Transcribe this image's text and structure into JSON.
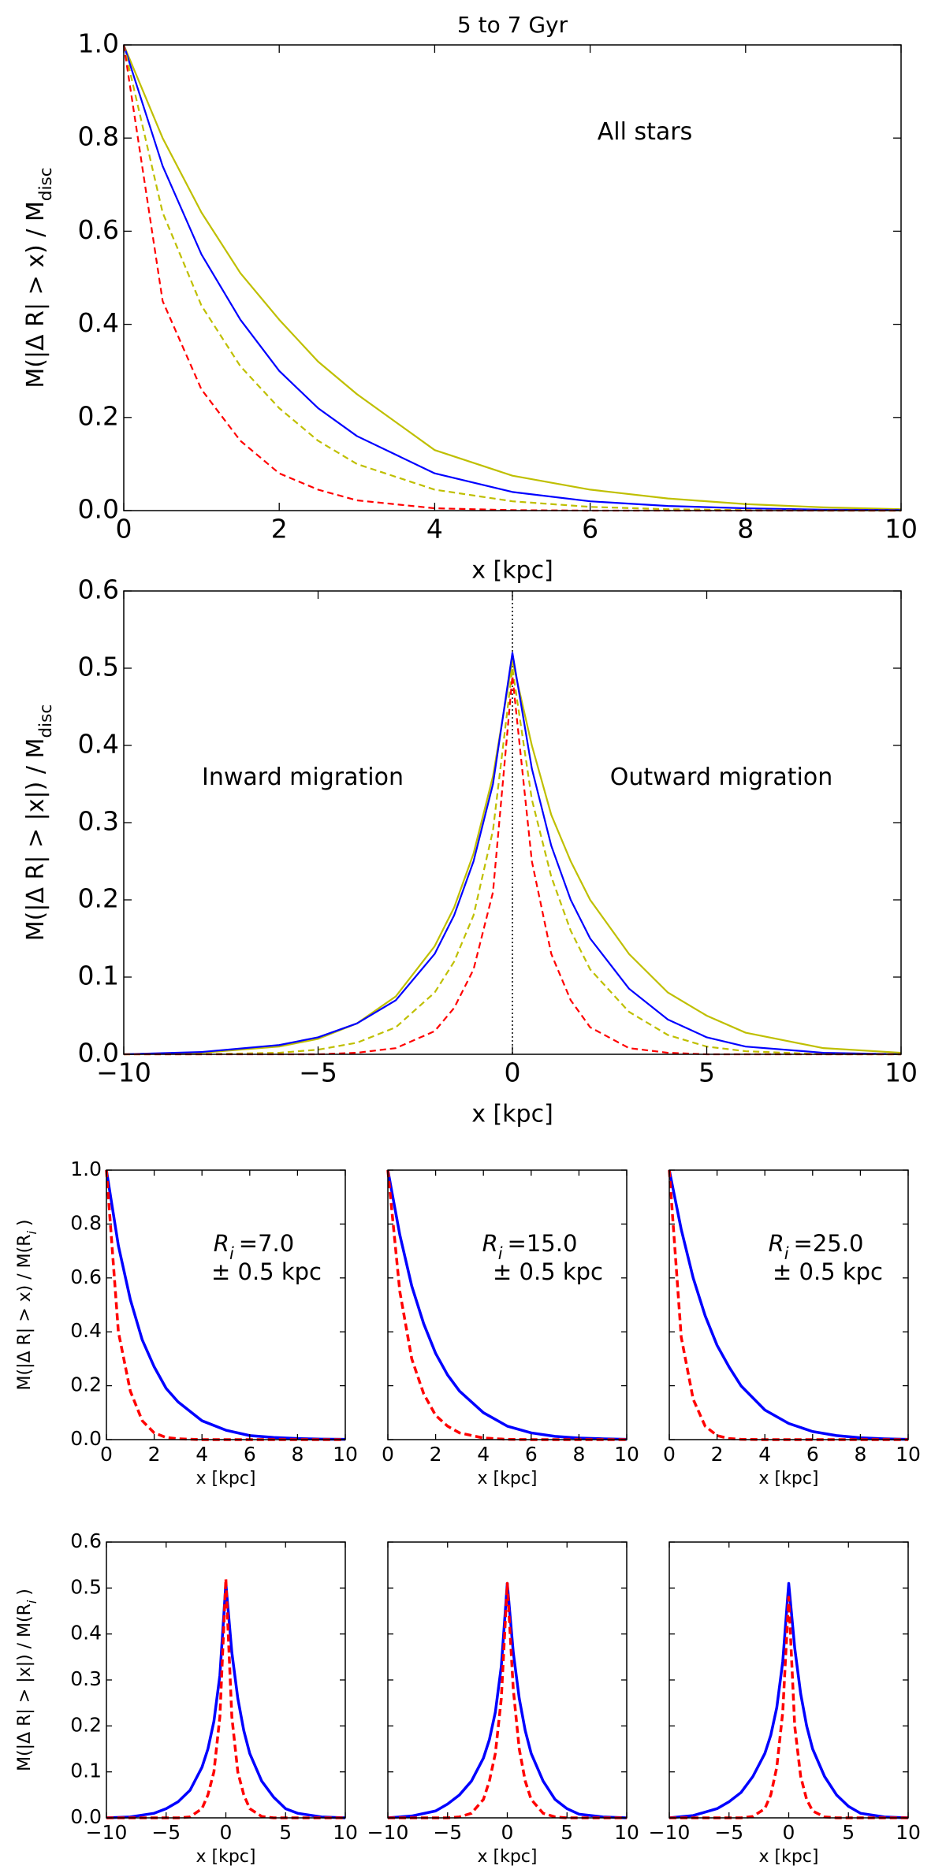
{
  "chart_data": [
    {
      "type": "line",
      "title": "5 to 7 Gyr",
      "xlabel": "x [kpc]",
      "ylabel": [
        "M(|Δ R| > x) / M",
        "disc"
      ],
      "annotations": [
        [
          "All stars"
        ]
      ],
      "x": [
        0,
        0.5,
        1,
        1.5,
        2,
        2.5,
        3,
        4,
        5,
        6,
        7,
        8,
        9,
        10
      ],
      "series": [
        {
          "color": "#bfbf00",
          "linestyle": "solid",
          "values": [
            1,
            0.8,
            0.64,
            0.51,
            0.41,
            0.32,
            0.25,
            0.13,
            0.075,
            0.045,
            0.026,
            0.014,
            0.007,
            0.003
          ]
        },
        {
          "color": "#0000ff",
          "linestyle": "solid",
          "values": [
            1,
            0.74,
            0.55,
            0.41,
            0.3,
            0.22,
            0.16,
            0.08,
            0.04,
            0.02,
            0.01,
            0.005,
            0.002,
            0.001
          ]
        },
        {
          "color": "#bfbf00",
          "linestyle": "dashed",
          "values": [
            1,
            0.64,
            0.44,
            0.31,
            0.22,
            0.15,
            0.1,
            0.045,
            0.02,
            0.008,
            0.003,
            0.001,
            0,
            0
          ]
        },
        {
          "color": "#ff0000",
          "linestyle": "dashed",
          "values": [
            1,
            0.45,
            0.26,
            0.15,
            0.08,
            0.045,
            0.022,
            0.005,
            0.001,
            0,
            0,
            0,
            0,
            0
          ]
        }
      ],
      "xlim": [
        0,
        10
      ],
      "ylim": [
        0,
        1
      ],
      "xticks": [
        0,
        2,
        4,
        6,
        8,
        10
      ],
      "yticks": [
        {
          "value": 0,
          "label": "0.0"
        },
        0.2,
        0.4,
        0.6,
        0.8,
        {
          "value": 1,
          "label": "1.0"
        }
      ]
    },
    {
      "type": "line",
      "xlabel": "x [kpc]",
      "ylabel": [
        "M(|Δ R| > |x|) / M",
        "disc"
      ],
      "annotations": [
        [
          "Inward migration"
        ],
        [
          "Outward migration"
        ]
      ],
      "vline": 0,
      "x": [
        -10,
        -8,
        -6,
        -5,
        -4,
        -3,
        -2,
        -1.5,
        -1,
        -0.5,
        0,
        0.5,
        1,
        1.5,
        2,
        3,
        4,
        5,
        6,
        8,
        10
      ],
      "series": [
        {
          "color": "#bfbf00",
          "linestyle": "solid",
          "values": [
            0,
            0.002,
            0.01,
            0.02,
            0.04,
            0.075,
            0.14,
            0.19,
            0.26,
            0.36,
            0.51,
            0.4,
            0.31,
            0.25,
            0.2,
            0.13,
            0.08,
            0.05,
            0.028,
            0.008,
            0.002
          ]
        },
        {
          "color": "#0000ff",
          "linestyle": "solid",
          "values": [
            0,
            0.003,
            0.012,
            0.022,
            0.04,
            0.07,
            0.13,
            0.18,
            0.25,
            0.35,
            0.52,
            0.37,
            0.27,
            0.2,
            0.15,
            0.085,
            0.045,
            0.022,
            0.01,
            0.002,
            0
          ]
        },
        {
          "color": "#bfbf00",
          "linestyle": "dashed",
          "values": [
            0,
            0,
            0.002,
            0.006,
            0.015,
            0.035,
            0.08,
            0.12,
            0.18,
            0.29,
            0.5,
            0.33,
            0.23,
            0.16,
            0.11,
            0.055,
            0.025,
            0.01,
            0.004,
            0,
            0
          ]
        },
        {
          "color": "#ff0000",
          "linestyle": "dashed",
          "values": [
            0,
            0,
            0,
            0,
            0.002,
            0.008,
            0.03,
            0.06,
            0.11,
            0.21,
            0.49,
            0.25,
            0.13,
            0.07,
            0.035,
            0.008,
            0.002,
            0,
            0,
            0,
            0
          ]
        }
      ],
      "xlim": [
        -10,
        10
      ],
      "ylim": [
        0,
        0.6
      ],
      "xticks": [
        {
          "value": -10,
          "label": "−10"
        },
        {
          "value": -5,
          "label": "−5"
        },
        0,
        5,
        10
      ],
      "yticks": [
        {
          "value": 0,
          "label": "0.0"
        },
        0.1,
        0.2,
        0.3,
        0.4,
        0.5,
        0.6
      ]
    },
    {
      "type": "line",
      "xlabel": "x [kpc]",
      "ylabel": [
        "M(|Δ R| > x) / M(R",
        "i",
        ")"
      ],
      "annotations": [
        [
          "R",
          "i",
          "=7.0"
        ],
        [
          "± 0.5 kpc"
        ]
      ],
      "x": [
        0,
        0.5,
        1,
        1.5,
        2,
        2.5,
        3,
        4,
        5,
        6,
        7,
        8,
        9,
        10
      ],
      "series": [
        {
          "color": "#0000ff",
          "linestyle": "solid",
          "values": [
            1,
            0.72,
            0.52,
            0.37,
            0.27,
            0.19,
            0.14,
            0.07,
            0.035,
            0.015,
            0.008,
            0.004,
            0.002,
            0.001
          ]
        },
        {
          "color": "#ff0000",
          "linestyle": "dashed",
          "values": [
            1,
            0.4,
            0.18,
            0.07,
            0.025,
            0.008,
            0.003,
            0,
            0,
            0,
            0,
            0,
            0,
            0
          ]
        }
      ],
      "xlim": [
        0,
        10
      ],
      "ylim": [
        0,
        1
      ],
      "xticks": [
        0,
        2,
        4,
        6,
        8,
        10
      ],
      "yticks": [
        {
          "value": 0,
          "label": "0.0"
        },
        0.2,
        0.4,
        0.6,
        0.8,
        {
          "value": 1,
          "label": "1.0"
        }
      ]
    },
    {
      "type": "line",
      "xlabel": "x [kpc]",
      "annotations": [
        [
          "R",
          "i",
          "=15.0"
        ],
        [
          "± 0.5 kpc"
        ]
      ],
      "x": [
        0,
        0.5,
        1,
        1.5,
        2,
        2.5,
        3,
        4,
        5,
        6,
        7,
        8,
        9,
        10
      ],
      "series": [
        {
          "color": "#0000ff",
          "linestyle": "solid",
          "values": [
            1,
            0.76,
            0.57,
            0.43,
            0.32,
            0.24,
            0.18,
            0.1,
            0.05,
            0.025,
            0.012,
            0.006,
            0.003,
            0.001
          ]
        },
        {
          "color": "#ff0000",
          "linestyle": "dashed",
          "values": [
            1,
            0.55,
            0.3,
            0.17,
            0.09,
            0.05,
            0.025,
            0.006,
            0.001,
            0,
            0,
            0,
            0,
            0
          ]
        }
      ],
      "xlim": [
        0,
        10
      ],
      "ylim": [
        0,
        1
      ],
      "xticks": [
        0,
        2,
        4,
        6,
        8,
        10
      ],
      "yticks": [
        0,
        0.2,
        0.4,
        0.6,
        0.8,
        1
      ],
      "ytick_labels": false
    },
    {
      "type": "line",
      "xlabel": "x [kpc]",
      "annotations": [
        [
          "R",
          "i",
          "=25.0"
        ],
        [
          "± 0.5 kpc"
        ]
      ],
      "x": [
        0,
        0.5,
        1,
        1.5,
        2,
        2.5,
        3,
        4,
        5,
        6,
        7,
        8,
        9,
        10
      ],
      "series": [
        {
          "color": "#0000ff",
          "linestyle": "solid",
          "values": [
            1,
            0.78,
            0.6,
            0.46,
            0.35,
            0.27,
            0.2,
            0.11,
            0.06,
            0.03,
            0.015,
            0.007,
            0.003,
            0.001
          ]
        },
        {
          "color": "#ff0000",
          "linestyle": "dashed",
          "values": [
            1,
            0.38,
            0.15,
            0.05,
            0.015,
            0.004,
            0.001,
            0,
            0,
            0,
            0,
            0,
            0,
            0
          ]
        }
      ],
      "xlim": [
        0,
        10
      ],
      "ylim": [
        0,
        1
      ],
      "xticks": [
        0,
        2,
        4,
        6,
        8,
        10
      ],
      "yticks": [
        0,
        0.2,
        0.4,
        0.6,
        0.8,
        1
      ],
      "ytick_labels": false
    },
    {
      "type": "line",
      "xlabel": "x [kpc]",
      "ylabel": [
        "M(|Δ R| > |x|) / M(R",
        "i",
        ")"
      ],
      "x": [
        -10,
        -8,
        -6,
        -5,
        -4,
        -3,
        -2,
        -1.5,
        -1,
        -0.5,
        0,
        0.5,
        1,
        1.5,
        2,
        3,
        4,
        5,
        6,
        8,
        10
      ],
      "series": [
        {
          "color": "#0000ff",
          "linestyle": "solid",
          "values": [
            0,
            0.002,
            0.01,
            0.02,
            0.035,
            0.06,
            0.11,
            0.15,
            0.21,
            0.31,
            0.51,
            0.36,
            0.26,
            0.19,
            0.14,
            0.08,
            0.045,
            0.02,
            0.01,
            0.002,
            0
          ]
        },
        {
          "color": "#ff0000",
          "linestyle": "dashed",
          "values": [
            0,
            0,
            0,
            0,
            0,
            0.002,
            0.02,
            0.05,
            0.1,
            0.22,
            0.52,
            0.22,
            0.1,
            0.05,
            0.02,
            0.003,
            0,
            0,
            0,
            0,
            0
          ]
        }
      ],
      "xlim": [
        -10,
        10
      ],
      "ylim": [
        0,
        0.6
      ],
      "xticks": [
        {
          "value": -10,
          "label": "−10"
        },
        {
          "value": -5,
          "label": "−5"
        },
        0,
        5,
        10
      ],
      "yticks": [
        {
          "value": 0,
          "label": "0.0"
        },
        0.1,
        0.2,
        0.3,
        0.4,
        0.5,
        0.6
      ]
    },
    {
      "type": "line",
      "xlabel": "x [kpc]",
      "x": [
        -10,
        -8,
        -6,
        -5,
        -4,
        -3,
        -2,
        -1.5,
        -1,
        -0.5,
        0,
        0.5,
        1,
        1.5,
        2,
        3,
        4,
        5,
        6,
        8,
        10
      ],
      "series": [
        {
          "color": "#0000ff",
          "linestyle": "solid",
          "values": [
            0,
            0.004,
            0.015,
            0.03,
            0.05,
            0.08,
            0.13,
            0.17,
            0.23,
            0.33,
            0.51,
            0.36,
            0.26,
            0.19,
            0.14,
            0.08,
            0.04,
            0.02,
            0.008,
            0.002,
            0
          ]
        },
        {
          "color": "#ff0000",
          "linestyle": "dashed",
          "values": [
            0,
            0,
            0,
            0,
            0.002,
            0.01,
            0.04,
            0.08,
            0.14,
            0.26,
            0.51,
            0.28,
            0.15,
            0.08,
            0.04,
            0.01,
            0.002,
            0,
            0,
            0,
            0
          ]
        }
      ],
      "xlim": [
        -10,
        10
      ],
      "ylim": [
        0,
        0.6
      ],
      "xticks": [
        {
          "value": -10,
          "label": "−10"
        },
        {
          "value": -5,
          "label": "−5"
        },
        0,
        5,
        10
      ],
      "yticks": [
        0,
        0.1,
        0.2,
        0.3,
        0.4,
        0.5,
        0.6
      ],
      "ytick_labels": false
    },
    {
      "type": "line",
      "xlabel": "x [kpc]",
      "x": [
        -10,
        -8,
        -6,
        -5,
        -4,
        -3,
        -2,
        -1.5,
        -1,
        -0.5,
        0,
        0.5,
        1,
        1.5,
        2,
        3,
        4,
        5,
        6,
        8,
        10
      ],
      "series": [
        {
          "color": "#0000ff",
          "linestyle": "solid",
          "values": [
            0,
            0.005,
            0.02,
            0.035,
            0.055,
            0.09,
            0.14,
            0.18,
            0.24,
            0.34,
            0.51,
            0.37,
            0.27,
            0.2,
            0.15,
            0.09,
            0.05,
            0.025,
            0.01,
            0.002,
            0
          ]
        },
        {
          "color": "#ff0000",
          "linestyle": "dashed",
          "values": [
            0,
            0,
            0,
            0,
            0,
            0.003,
            0.02,
            0.05,
            0.11,
            0.23,
            0.48,
            0.2,
            0.09,
            0.04,
            0.015,
            0.002,
            0,
            0,
            0,
            0,
            0
          ]
        }
      ],
      "xlim": [
        -10,
        10
      ],
      "ylim": [
        0,
        0.6
      ],
      "xticks": [
        {
          "value": -10,
          "label": "−10"
        },
        {
          "value": -5,
          "label": "−5"
        },
        0,
        5,
        10
      ],
      "yticks": [
        0,
        0.1,
        0.2,
        0.3,
        0.4,
        0.5,
        0.6
      ],
      "ytick_labels": false
    }
  ]
}
